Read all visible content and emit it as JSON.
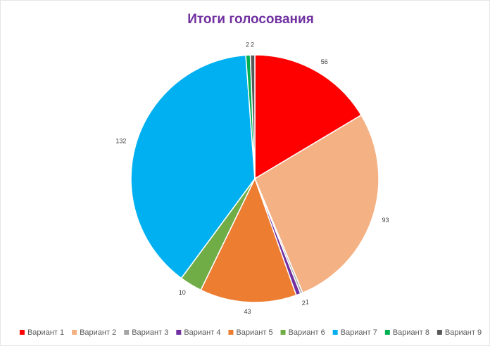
{
  "chart_data": {
    "type": "pie",
    "title": "Итоги голосования",
    "categories": [
      "Вариант 1",
      "Вариант 2",
      "Вариант 3",
      "Вариант 4",
      "Вариант 5",
      "Вариант 6",
      "Вариант 7",
      "Вариант 8",
      "Вариант 9"
    ],
    "values": [
      56,
      93,
      1,
      2,
      43,
      10,
      132,
      2,
      2
    ],
    "colors": [
      "#ff0000",
      "#f4b183",
      "#a5a5a5",
      "#7030a0",
      "#ed7d31",
      "#70ad47",
      "#00b0f0",
      "#00b050",
      "#595959"
    ]
  }
}
